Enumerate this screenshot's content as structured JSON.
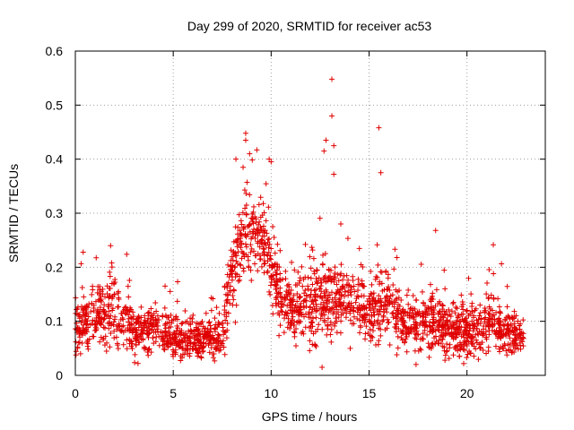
{
  "chart_data": {
    "type": "scatter",
    "title": "Day 299 of 2020, SRMTID for receiver ac53",
    "xlabel": "GPS time / hours",
    "ylabel": "SRMTID / TECUs",
    "xlim": [
      0,
      24
    ],
    "ylim": [
      0,
      0.6
    ],
    "x_ticks": [
      0,
      5,
      10,
      15,
      20
    ],
    "x_tick_labels": [
      "0",
      "5",
      "10",
      "15",
      "20"
    ],
    "y_ticks": [
      0,
      0.1,
      0.2,
      0.3,
      0.4,
      0.5,
      0.6
    ],
    "y_tick_labels": [
      "0",
      "0.1",
      "0.2",
      "0.3",
      "0.4",
      "0.5",
      "0.6"
    ],
    "grid": true,
    "marker": "+",
    "color": "#e00000",
    "x_data_range": [
      0,
      22.9
    ],
    "level_profile": {
      "description": "approximate typical SRMTID level by time of day",
      "x": [
        0,
        1,
        2,
        3,
        4,
        5,
        6,
        7,
        7.5,
        8,
        8.5,
        9,
        9.5,
        10,
        10.5,
        11,
        12,
        13,
        14,
        15,
        16,
        17,
        18,
        19,
        20,
        21,
        22,
        22.9
      ],
      "median": [
        0.09,
        0.11,
        0.12,
        0.08,
        0.09,
        0.07,
        0.07,
        0.07,
        0.08,
        0.18,
        0.25,
        0.26,
        0.27,
        0.2,
        0.14,
        0.12,
        0.13,
        0.15,
        0.14,
        0.12,
        0.13,
        0.09,
        0.11,
        0.08,
        0.08,
        0.1,
        0.08,
        0.07
      ],
      "spread": [
        0.035,
        0.035,
        0.045,
        0.03,
        0.03,
        0.025,
        0.025,
        0.02,
        0.03,
        0.05,
        0.05,
        0.05,
        0.05,
        0.05,
        0.04,
        0.035,
        0.05,
        0.05,
        0.04,
        0.035,
        0.045,
        0.03,
        0.04,
        0.03,
        0.03,
        0.04,
        0.03,
        0.02
      ]
    },
    "notable_points": [
      {
        "x": 13.1,
        "y": 0.548
      },
      {
        "x": 13.1,
        "y": 0.48
      },
      {
        "x": 15.5,
        "y": 0.458
      },
      {
        "x": 8.7,
        "y": 0.448
      },
      {
        "x": 8.7,
        "y": 0.435
      },
      {
        "x": 12.8,
        "y": 0.435
      },
      {
        "x": 13.2,
        "y": 0.425
      },
      {
        "x": 8.9,
        "y": 0.41
      },
      {
        "x": 9.9,
        "y": 0.4
      },
      {
        "x": 10.0,
        "y": 0.395
      },
      {
        "x": 8.2,
        "y": 0.4
      },
      {
        "x": 12.7,
        "y": 0.415
      },
      {
        "x": 15.6,
        "y": 0.375
      },
      {
        "x": 13.2,
        "y": 0.372
      },
      {
        "x": 12.6,
        "y": 0.015
      },
      {
        "x": 17.4,
        "y": 0.02
      },
      {
        "x": 3.2,
        "y": 0.022
      },
      {
        "x": 1.8,
        "y": 0.24
      },
      {
        "x": 0.4,
        "y": 0.228
      },
      {
        "x": 18.4,
        "y": 0.268
      }
    ]
  }
}
